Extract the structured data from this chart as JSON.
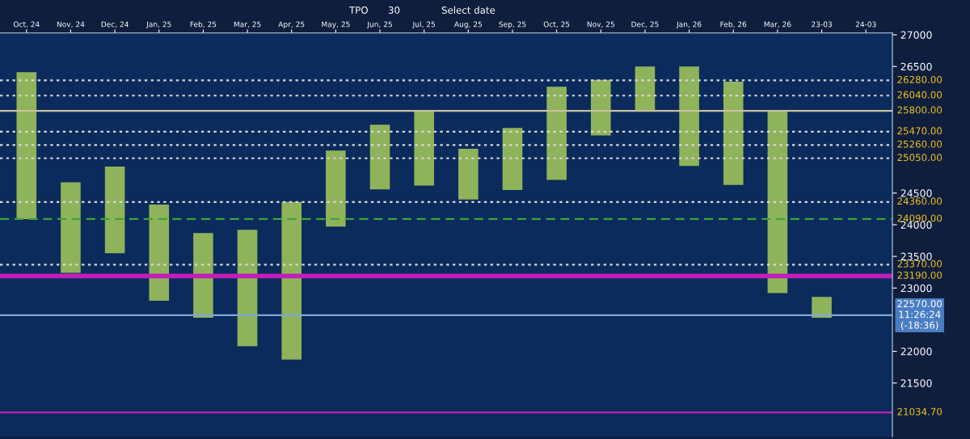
{
  "chart_data": {
    "type": "bar",
    "categories": [
      "Oct, 24",
      "Nov, 24",
      "Dec, 24",
      "Jan, 25",
      "Feb, 25",
      "Mar, 25",
      "Apr, 25",
      "May, 25",
      "Jun, 25",
      "Jul, 25",
      "Aug, 25",
      "Sep, 25",
      "Oct, 25",
      "Nov, 25",
      "Dec, 25",
      "Jan, 26",
      "Feb, 26",
      "Mar, 26",
      "23-03",
      "24-03"
    ],
    "base": [
      24090,
      23240,
      23550,
      22800,
      22530,
      22080,
      21870,
      23970,
      24560,
      24620,
      24400,
      24550,
      24710,
      25410,
      25800,
      24930,
      24630,
      22920,
      22530,
      null
    ],
    "values": [
      2320,
      1430,
      1370,
      1520,
      1340,
      1840,
      2490,
      1200,
      1020,
      1170,
      800,
      980,
      1470,
      880,
      700,
      1570,
      1630,
      2870,
      330,
      null
    ],
    "color": "#8fb35a",
    "ylim": [
      20650,
      27030
    ],
    "yticks": [
      21500,
      22000,
      23000,
      23500,
      24000,
      24500,
      26500,
      27000
    ],
    "grid": false,
    "ref_lines": [
      {
        "axis": "y",
        "value": 26280,
        "label": "26280.00",
        "color": "#d9d9d9",
        "line_style": "dotted"
      },
      {
        "axis": "y",
        "value": 26040,
        "label": "26040.00",
        "color": "#d9d9d9",
        "line_style": "dotted"
      },
      {
        "axis": "y",
        "value": 25800,
        "label": "25800.00",
        "color": "#c8c0a0",
        "line_style": "solid"
      },
      {
        "axis": "y",
        "value": 25470,
        "label": "25470.00",
        "color": "#d9d9d9",
        "line_style": "dotted"
      },
      {
        "axis": "y",
        "value": 25260,
        "label": "25260.00",
        "color": "#d9d9d9",
        "line_style": "dotted"
      },
      {
        "axis": "y",
        "value": 25050,
        "label": "25050.00",
        "color": "#d9d9d9",
        "line_style": "dotted"
      },
      {
        "axis": "y",
        "value": 24360,
        "label": "24360.00",
        "color": "#d9d9d9",
        "line_style": "dotted"
      },
      {
        "axis": "y",
        "value": 24090,
        "label": "24090.00",
        "color": "#3fa33a",
        "line_style": "dashed"
      },
      {
        "axis": "y",
        "value": 23370,
        "label": "23370.00",
        "color": "#d9d9d9",
        "line_style": "dotted"
      },
      {
        "axis": "y",
        "value": 23190,
        "label": "23190.00",
        "color": "#c01fb8",
        "line_style": "solid"
      },
      {
        "axis": "y",
        "value": 22570,
        "label": "22570.00\n11:26:24\n(-18:36)",
        "color": "#7fa6d6",
        "line_style": "solid"
      },
      {
        "axis": "y",
        "value": 21034.7,
        "label": "21034.70",
        "color": "#c01fb8",
        "line_style": "solid"
      }
    ],
    "annotations": [
      "TPO",
      "30",
      "Select date"
    ]
  }
}
